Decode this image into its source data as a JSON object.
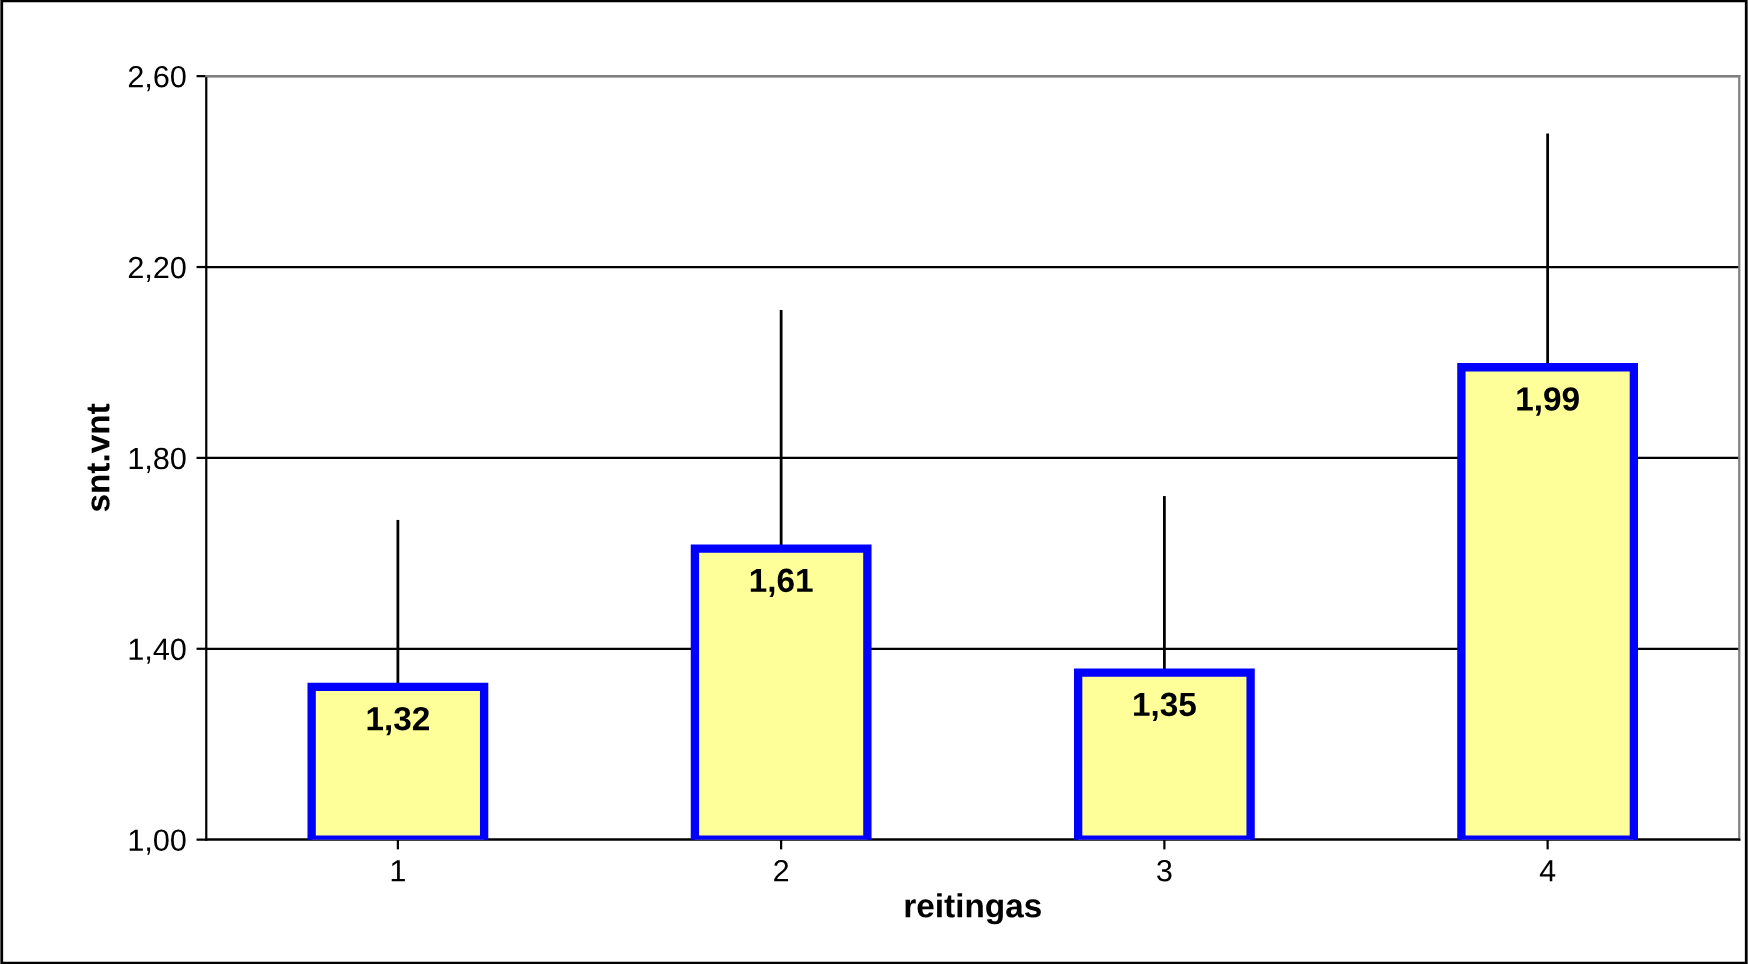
{
  "chart_data": {
    "type": "bar",
    "xlabel": "reitingas",
    "ylabel": "snt.vnt",
    "categories": [
      "1",
      "2",
      "3",
      "4"
    ],
    "values": [
      1.32,
      1.61,
      1.35,
      1.99
    ],
    "errors": [
      [
        1.32,
        1.67
      ],
      [
        1.61,
        2.11
      ],
      [
        1.35,
        1.72
      ],
      [
        1.99,
        2.48
      ]
    ],
    "value_labels": [
      "1,32",
      "1,61",
      "1,35",
      "1,99"
    ],
    "color": "#ffff99",
    "ylim": [
      1.0,
      2.6
    ],
    "yticks": [
      {
        "value": 1.0,
        "label": "1,00"
      },
      {
        "value": 1.4,
        "label": "1,40"
      },
      {
        "value": 1.8,
        "label": "1,80"
      },
      {
        "value": 2.2,
        "label": "2,20"
      },
      {
        "value": 2.6,
        "label": "2,60"
      }
    ],
    "grid": "y",
    "legend": false
  }
}
